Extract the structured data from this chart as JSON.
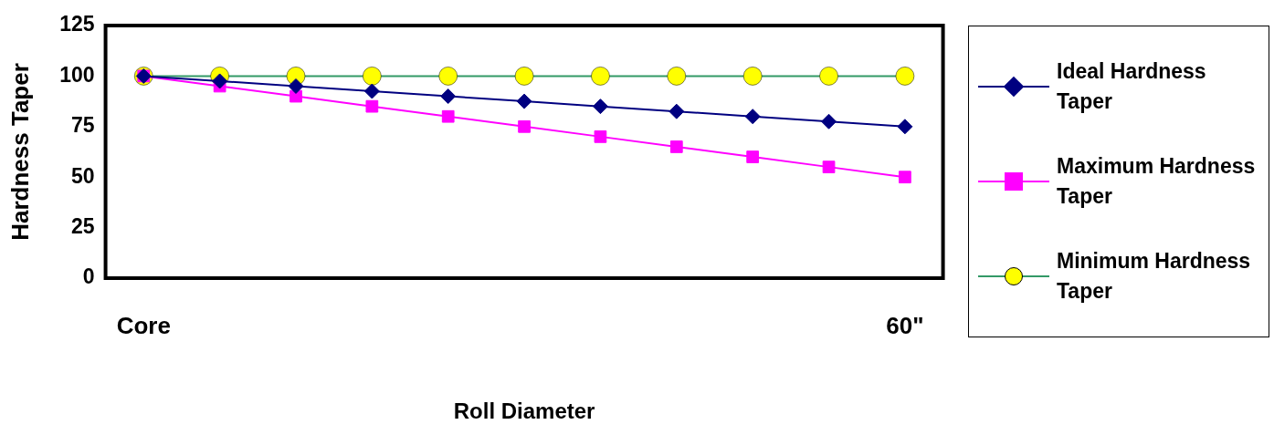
{
  "chart_data": {
    "type": "line",
    "xlabel": "Roll Diameter",
    "ylabel": "Hardness Taper",
    "categories": [
      "Core",
      null,
      null,
      null,
      null,
      null,
      null,
      null,
      null,
      null,
      "60\""
    ],
    "ylim": [
      0,
      125
    ],
    "yticks": [
      0,
      25,
      50,
      75,
      100,
      125
    ],
    "grid": false,
    "legend": "right",
    "series": [
      {
        "name": "Ideal Hardness Taper",
        "color": "#000080",
        "marker": "diamond",
        "values": [
          100,
          97.5,
          95,
          92.5,
          90,
          87.5,
          85,
          82.5,
          80,
          77.5,
          75
        ]
      },
      {
        "name": "Maximum Hardness Taper",
        "color": "#ff00ff",
        "marker": "square",
        "values": [
          100,
          95,
          90,
          85,
          80,
          75,
          70,
          65,
          60,
          55,
          50
        ]
      },
      {
        "name": "Minimum Hardness Taper",
        "color": "#339966",
        "colors": [
          "#ffff00",
          "#ffff00",
          "#ffff00",
          "#ffff00",
          "#ffff00",
          "#ffff00",
          "#ffff00",
          "#ffff00",
          "#ffff00",
          "#ffff00",
          "#ffff00"
        ],
        "marker": "circle",
        "values": [
          100,
          100,
          100,
          100,
          100,
          100,
          100,
          100,
          100,
          100,
          100
        ]
      }
    ]
  }
}
